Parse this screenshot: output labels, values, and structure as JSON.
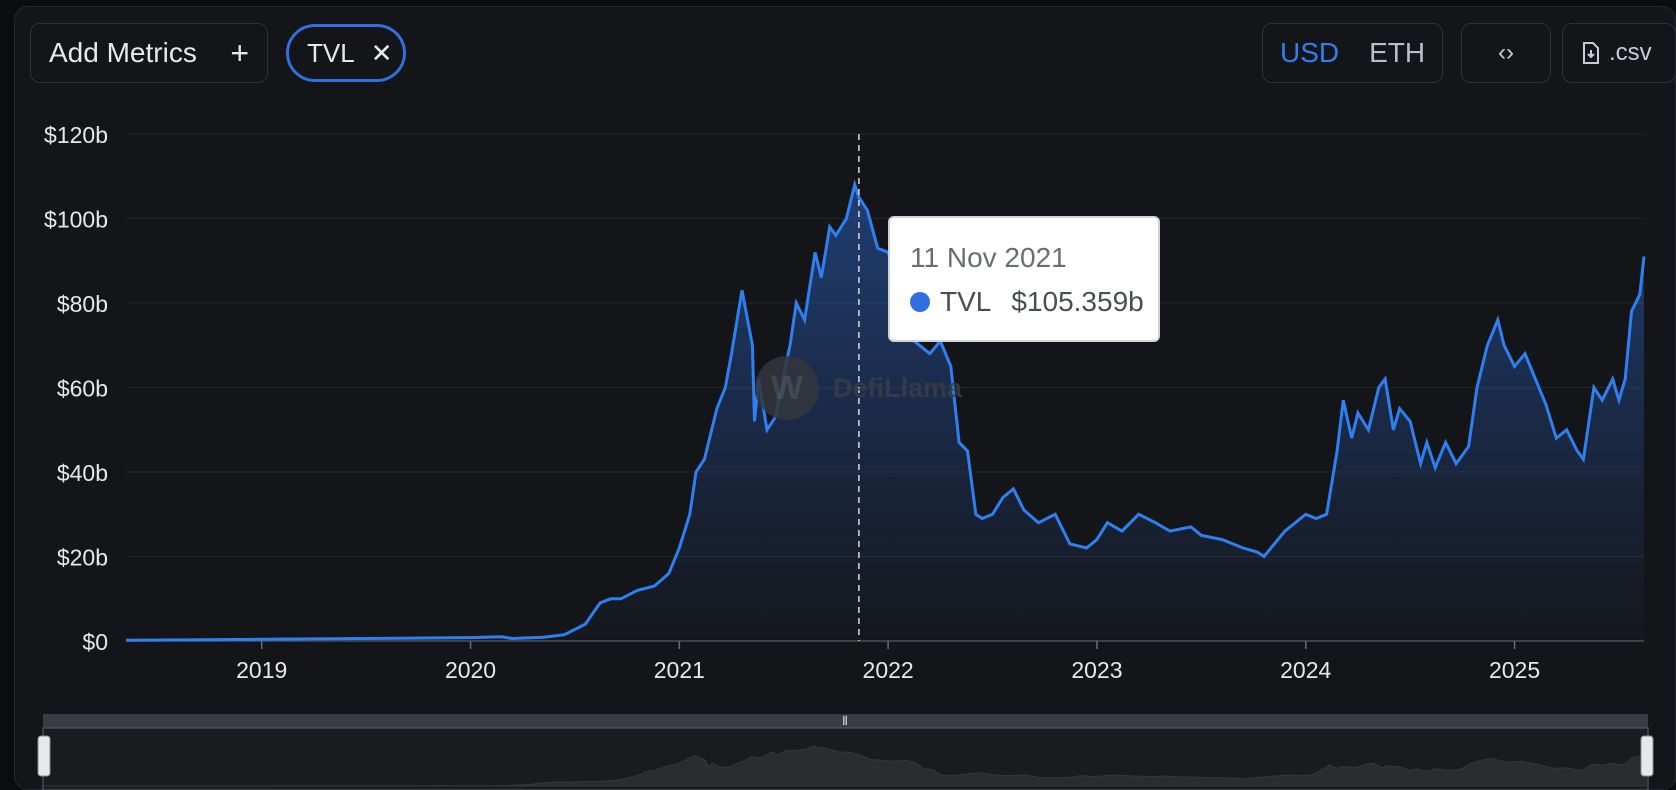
{
  "toolbar": {
    "add_metrics_label": "Add Metrics",
    "metric_pill_label": "TVL",
    "currency_options": [
      "USD",
      "ETH"
    ],
    "currency_selected": "USD",
    "csv_label": ".csv"
  },
  "tooltip": {
    "date": "11 Nov 2021",
    "series": "TVL",
    "value": "$105.359b"
  },
  "watermark": "DefiLlama",
  "colors": {
    "line": "#2f7ff0",
    "accent": "#2f6fe0",
    "background": "#141518"
  },
  "chart_data": {
    "type": "area",
    "title": "",
    "xlabel": "",
    "ylabel": "",
    "ylim": [
      0,
      120
    ],
    "yticks": [
      0,
      20,
      40,
      60,
      80,
      100,
      120
    ],
    "ytick_labels": [
      "$0",
      "$20b",
      "$40b",
      "$60b",
      "$80b",
      "$100b",
      "$120b"
    ],
    "xlim": [
      2018.35,
      2025.62
    ],
    "xticks": [
      2019,
      2020,
      2021,
      2022,
      2023,
      2024,
      2025
    ],
    "xtick_labels": [
      "2019",
      "2020",
      "2021",
      "2022",
      "2023",
      "2024",
      "2025"
    ],
    "crosshair_x": 2021.86,
    "grid": "horizontal",
    "series": [
      {
        "name": "TVL",
        "unit": "billion USD",
        "x": [
          2018.35,
          2019.0,
          2019.5,
          2020.0,
          2020.15,
          2020.2,
          2020.35,
          2020.45,
          2020.55,
          2020.62,
          2020.67,
          2020.72,
          2020.8,
          2020.88,
          2020.95,
          2021.0,
          2021.05,
          2021.08,
          2021.12,
          2021.18,
          2021.22,
          2021.25,
          2021.3,
          2021.35,
          2021.36,
          2021.38,
          2021.42,
          2021.46,
          2021.5,
          2021.53,
          2021.56,
          2021.6,
          2021.65,
          2021.68,
          2021.72,
          2021.75,
          2021.8,
          2021.84,
          2021.86,
          2021.9,
          2021.95,
          2022.0,
          2022.05,
          2022.1,
          2022.15,
          2022.2,
          2022.25,
          2022.3,
          2022.34,
          2022.38,
          2022.42,
          2022.45,
          2022.5,
          2022.55,
          2022.6,
          2022.65,
          2022.72,
          2022.8,
          2022.87,
          2022.95,
          2023.0,
          2023.05,
          2023.12,
          2023.2,
          2023.28,
          2023.35,
          2023.45,
          2023.5,
          2023.6,
          2023.7,
          2023.77,
          2023.8,
          2023.85,
          2023.9,
          2023.95,
          2024.0,
          2024.05,
          2024.1,
          2024.15,
          2024.18,
          2024.22,
          2024.25,
          2024.3,
          2024.35,
          2024.38,
          2024.42,
          2024.45,
          2024.5,
          2024.55,
          2024.58,
          2024.62,
          2024.67,
          2024.72,
          2024.78,
          2024.82,
          2024.87,
          2024.92,
          2024.95,
          2025.0,
          2025.05,
          2025.1,
          2025.15,
          2025.2,
          2025.25,
          2025.3,
          2025.33,
          2025.38,
          2025.42,
          2025.47,
          2025.5,
          2025.53,
          2025.56,
          2025.6,
          2025.62
        ],
        "values": [
          0.2,
          0.4,
          0.6,
          0.8,
          1.0,
          0.6,
          0.9,
          1.5,
          4,
          9,
          10,
          10,
          12,
          13,
          16,
          22,
          30,
          40,
          43,
          55,
          60,
          68,
          83,
          70,
          52,
          62,
          50,
          53,
          63,
          70,
          80,
          76,
          92,
          86,
          98,
          96,
          100,
          108,
          105,
          102,
          93,
          92,
          85,
          72,
          70,
          68,
          71,
          65,
          47,
          45,
          30,
          29,
          30,
          34,
          36,
          31,
          28,
          30,
          23,
          22,
          24,
          28,
          26,
          30,
          28,
          26,
          27,
          25,
          24,
          22,
          21,
          20,
          23,
          26,
          28,
          30,
          29,
          30,
          45,
          57,
          48,
          54,
          50,
          60,
          62,
          50,
          55,
          52,
          42,
          47,
          41,
          47,
          42,
          46,
          60,
          70,
          76,
          70,
          65,
          68,
          62,
          56,
          48,
          50,
          45,
          43,
          60,
          57,
          62,
          57,
          62,
          78,
          82,
          91
        ]
      }
    ]
  }
}
